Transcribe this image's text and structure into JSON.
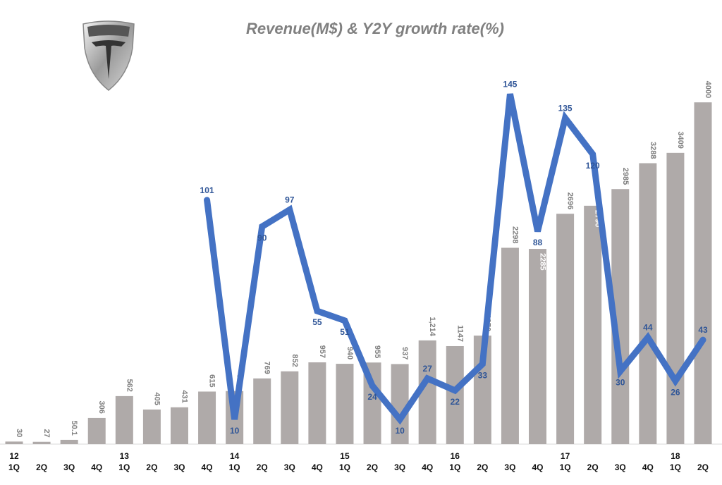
{
  "chart_data": {
    "type": "bar+line",
    "title": "Revenue(M$) & Y2Y growth rate(%)",
    "categories": [
      "1Q",
      "2Q",
      "3Q",
      "4Q",
      "1Q",
      "2Q",
      "3Q",
      "4Q",
      "1Q",
      "2Q",
      "3Q",
      "4Q",
      "1Q",
      "2Q",
      "3Q",
      "4Q",
      "1Q",
      "2Q",
      "3Q",
      "4Q",
      "1Q",
      "2Q",
      "3Q",
      "4Q",
      "1Q",
      "2Q"
    ],
    "year_labels": [
      "12",
      "",
      "",
      "",
      "13",
      "",
      "",
      "",
      "14",
      "",
      "",
      "",
      "15",
      "",
      "",
      "",
      "16",
      "",
      "",
      "",
      "17",
      "",
      "",
      "",
      "18",
      ""
    ],
    "series": [
      {
        "type": "bar",
        "color": "#AFAAA9",
        "values": [
          30,
          27,
          50.1,
          306,
          562,
          405,
          431,
          615,
          621,
          769,
          852,
          957,
          940,
          955,
          937,
          1214,
          1147,
          1270,
          2298,
          2285,
          2696,
          2790,
          2985,
          3288,
          3409,
          4000
        ],
        "labels": [
          "30",
          "27",
          "50.1",
          "306",
          "562",
          "405",
          "431",
          "615",
          "621",
          "769",
          "852",
          "957",
          "940",
          "955",
          "937",
          "1,214",
          "1147",
          "1270",
          "2298",
          "2285",
          "2696",
          "2790",
          "2985",
          "3288",
          "3409",
          "4000"
        ]
      },
      {
        "type": "line",
        "color": "#4472C4",
        "values": [
          null,
          null,
          null,
          null,
          null,
          null,
          null,
          101,
          10,
          90,
          97,
          55,
          51,
          24,
          10,
          27,
          22,
          33,
          145,
          88,
          135,
          120,
          30,
          44,
          26,
          43
        ]
      }
    ],
    "grid": false,
    "legend": "none"
  },
  "logo": {
    "text": "TESLA"
  }
}
